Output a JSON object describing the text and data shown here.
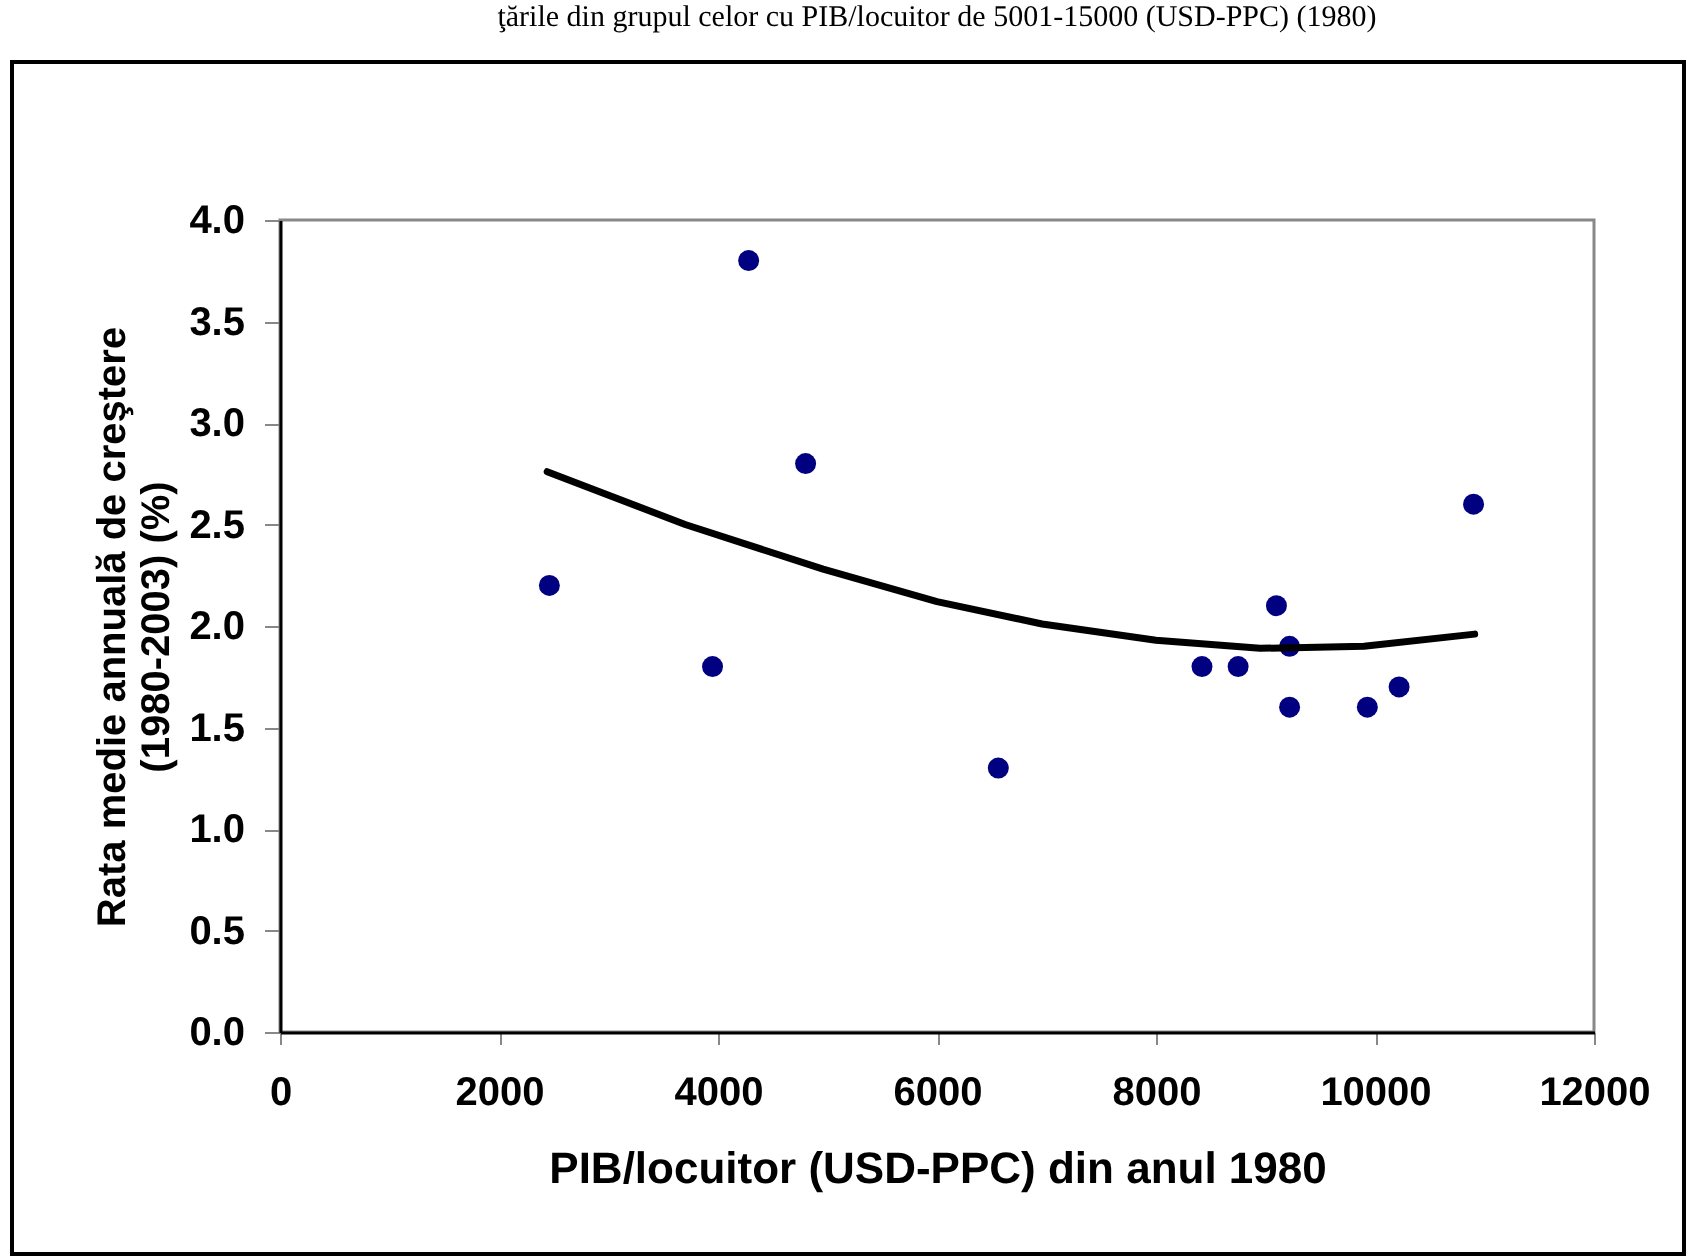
{
  "chart_data": {
    "type": "scatter",
    "title": "ţările din grupul celor cu PIB/locuitor de 5001-15000 (USD-PPC) (1980)",
    "xlabel": "PIB/locuitor (USD-PPC) din anul 1980",
    "ylabel": "Rata medie annuală de creştere (1980-2003) (%)",
    "xlim": [
      0,
      12000
    ],
    "xticks": [
      0,
      2000,
      4000,
      6000,
      8000,
      10000,
      12000
    ],
    "ylim": [
      0,
      4
    ],
    "yticks": [
      {
        "value": 0,
        "label": "0.0"
      },
      {
        "value": 0.5,
        "label": "0.5"
      },
      {
        "value": 1,
        "label": "1.0"
      },
      {
        "value": 1.5,
        "label": "1.5"
      },
      {
        "value": 2,
        "label": "2.0"
      },
      {
        "value": 2.5,
        "label": "2.5"
      },
      {
        "value": 3,
        "label": "3.0"
      },
      {
        "value": 3.5,
        "label": "3.5"
      },
      {
        "value": 4,
        "label": "4.0"
      }
    ],
    "grid": false,
    "marker": "circle",
    "series": [
      {
        "color": "#000080",
        "x": [
          2460,
          3950,
          4280,
          4800,
          6560,
          8420,
          8750,
          9100,
          9220,
          9220,
          9930,
          10220,
          10900
        ],
        "values": [
          2.2,
          1.8,
          3.8,
          2.8,
          1.3,
          1.8,
          1.8,
          2.1,
          1.9,
          1.6,
          1.6,
          1.7,
          2.6
        ]
      },
      {
        "type": "line",
        "color": "#000000",
        "marker": "none",
        "line_style": "solid",
        "x": [
          2440,
          3700,
          4960,
          6000,
          6960,
          8000,
          8950,
          9900,
          10910
        ],
        "values": [
          2.76,
          2.5,
          2.28,
          2.12,
          2.01,
          1.93,
          1.89,
          1.9,
          1.96
        ]
      }
    ]
  }
}
